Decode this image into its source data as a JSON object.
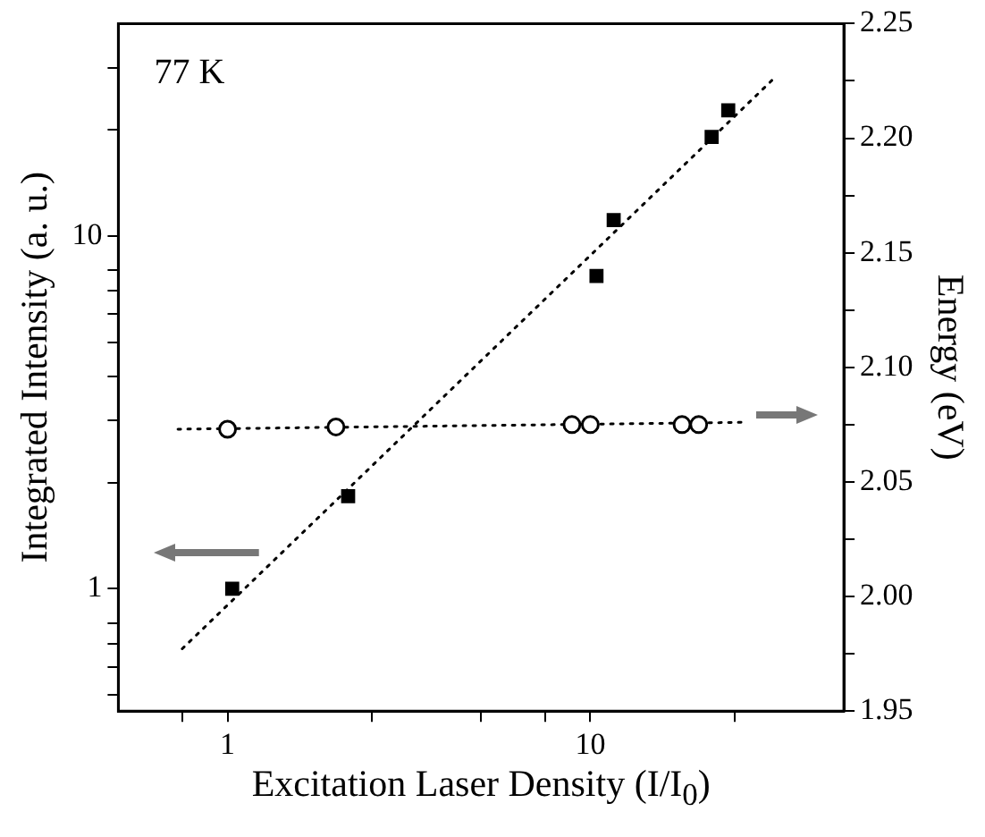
{
  "chart_data": {
    "type": "scatter",
    "xlabel": "Excitation Laser Density (I/I$_{0}$)",
    "ylabel": "Integrated Intensity (a. u.)",
    "y2label": "Energy (eV)",
    "annotations": [
      "77 K"
    ],
    "log": "xy",
    "grid": false,
    "legend": false,
    "xlim": [
      0.5,
      50
    ],
    "xticks": [
      {
        "value": 0.75,
        "label": null
      },
      1,
      {
        "value": 2.5,
        "label": null
      },
      {
        "value": 5,
        "label": null
      },
      {
        "value": 7.5,
        "label": null
      },
      10,
      {
        "value": 25,
        "label": null
      }
    ],
    "ylim": [
      0.45,
      40
    ],
    "yticks": [
      {
        "value": 0.5,
        "label": null
      },
      {
        "value": 0.6,
        "label": null
      },
      {
        "value": 0.7,
        "label": null
      },
      {
        "value": 0.8,
        "label": null
      },
      1,
      {
        "value": 2,
        "label": null
      },
      {
        "value": 3,
        "label": null
      },
      {
        "value": 4,
        "label": null
      },
      {
        "value": 5,
        "label": null
      },
      {
        "value": 6,
        "label": null
      },
      {
        "value": 7,
        "label": null
      },
      {
        "value": 8,
        "label": null
      },
      10,
      {
        "value": 20,
        "label": null
      },
      {
        "value": 30,
        "label": null
      }
    ],
    "y2lim": [
      1.95,
      2.25
    ],
    "y2ticks": [
      {
        "value": 1.95,
        "label": "1.95"
      },
      {
        "value": 1.975,
        "label": null
      },
      {
        "value": 2.0,
        "label": "2.00"
      },
      {
        "value": 2.025,
        "label": null
      },
      {
        "value": 2.05,
        "label": "2.05"
      },
      {
        "value": 2.075,
        "label": null
      },
      {
        "value": 2.1,
        "label": "2.10"
      },
      {
        "value": 2.125,
        "label": null
      },
      {
        "value": 2.15,
        "label": "2.15"
      },
      {
        "value": 2.175,
        "label": null
      },
      {
        "value": 2.2,
        "label": "2.20"
      },
      {
        "value": 2.225,
        "label": null
      },
      {
        "value": 2.25,
        "label": "2.25"
      }
    ],
    "series": [
      {
        "type": "scatter",
        "color": "#000000",
        "marker": "square",
        "x": [
          1.03,
          2.15,
          10.4,
          11.6,
          21.6,
          24
        ],
        "values": [
          1.0,
          1.83,
          7.7,
          11.1,
          19.1,
          22.7
        ]
      },
      {
        "type": "line",
        "color": "#000000",
        "marker": "none",
        "line_style": "dotted",
        "x": [
          0.75,
          32
        ],
        "values": [
          0.676,
          27.9
        ]
      },
      {
        "type": "scatter",
        "color": "#000000",
        "marker": "circle",
        "axis": "y2",
        "x": [
          1.0,
          1.99,
          8.9,
          10,
          17.9,
          19.9
        ],
        "values": [
          2.073,
          2.074,
          2.075,
          2.075,
          2.075,
          2.075
        ]
      },
      {
        "type": "line",
        "color": "#000000",
        "marker": "none",
        "line_style": "dotted",
        "axis": "y2",
        "x": [
          0.73,
          26.4
        ],
        "values": [
          2.073,
          2.076
        ]
      }
    ]
  }
}
